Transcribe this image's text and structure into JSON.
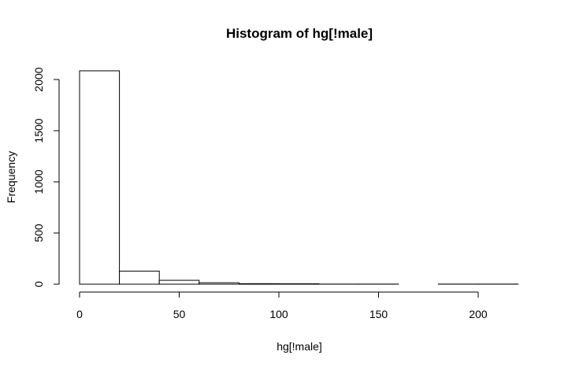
{
  "chart_data": {
    "type": "bar",
    "title": "Histogram of hg[!male]",
    "xlabel": "hg[!male]",
    "ylabel": "Frequency",
    "bins": [
      {
        "from": 0,
        "to": 20,
        "count": 2085
      },
      {
        "from": 20,
        "to": 40,
        "count": 128
      },
      {
        "from": 40,
        "to": 60,
        "count": 38
      },
      {
        "from": 60,
        "to": 80,
        "count": 14
      },
      {
        "from": 80,
        "to": 100,
        "count": 5
      },
      {
        "from": 100,
        "to": 120,
        "count": 4
      },
      {
        "from": 120,
        "to": 140,
        "count": 1
      },
      {
        "from": 140,
        "to": 160,
        "count": 1
      },
      {
        "from": 160,
        "to": 180,
        "count": 0
      },
      {
        "from": 180,
        "to": 200,
        "count": 1
      },
      {
        "from": 200,
        "to": 220,
        "count": 1
      }
    ],
    "xticks": [
      0,
      50,
      100,
      150,
      200
    ],
    "yticks": [
      0,
      500,
      1000,
      1500,
      2000
    ],
    "xlim": [
      0,
      220
    ],
    "ylim": [
      0,
      2085
    ],
    "grid": false
  }
}
